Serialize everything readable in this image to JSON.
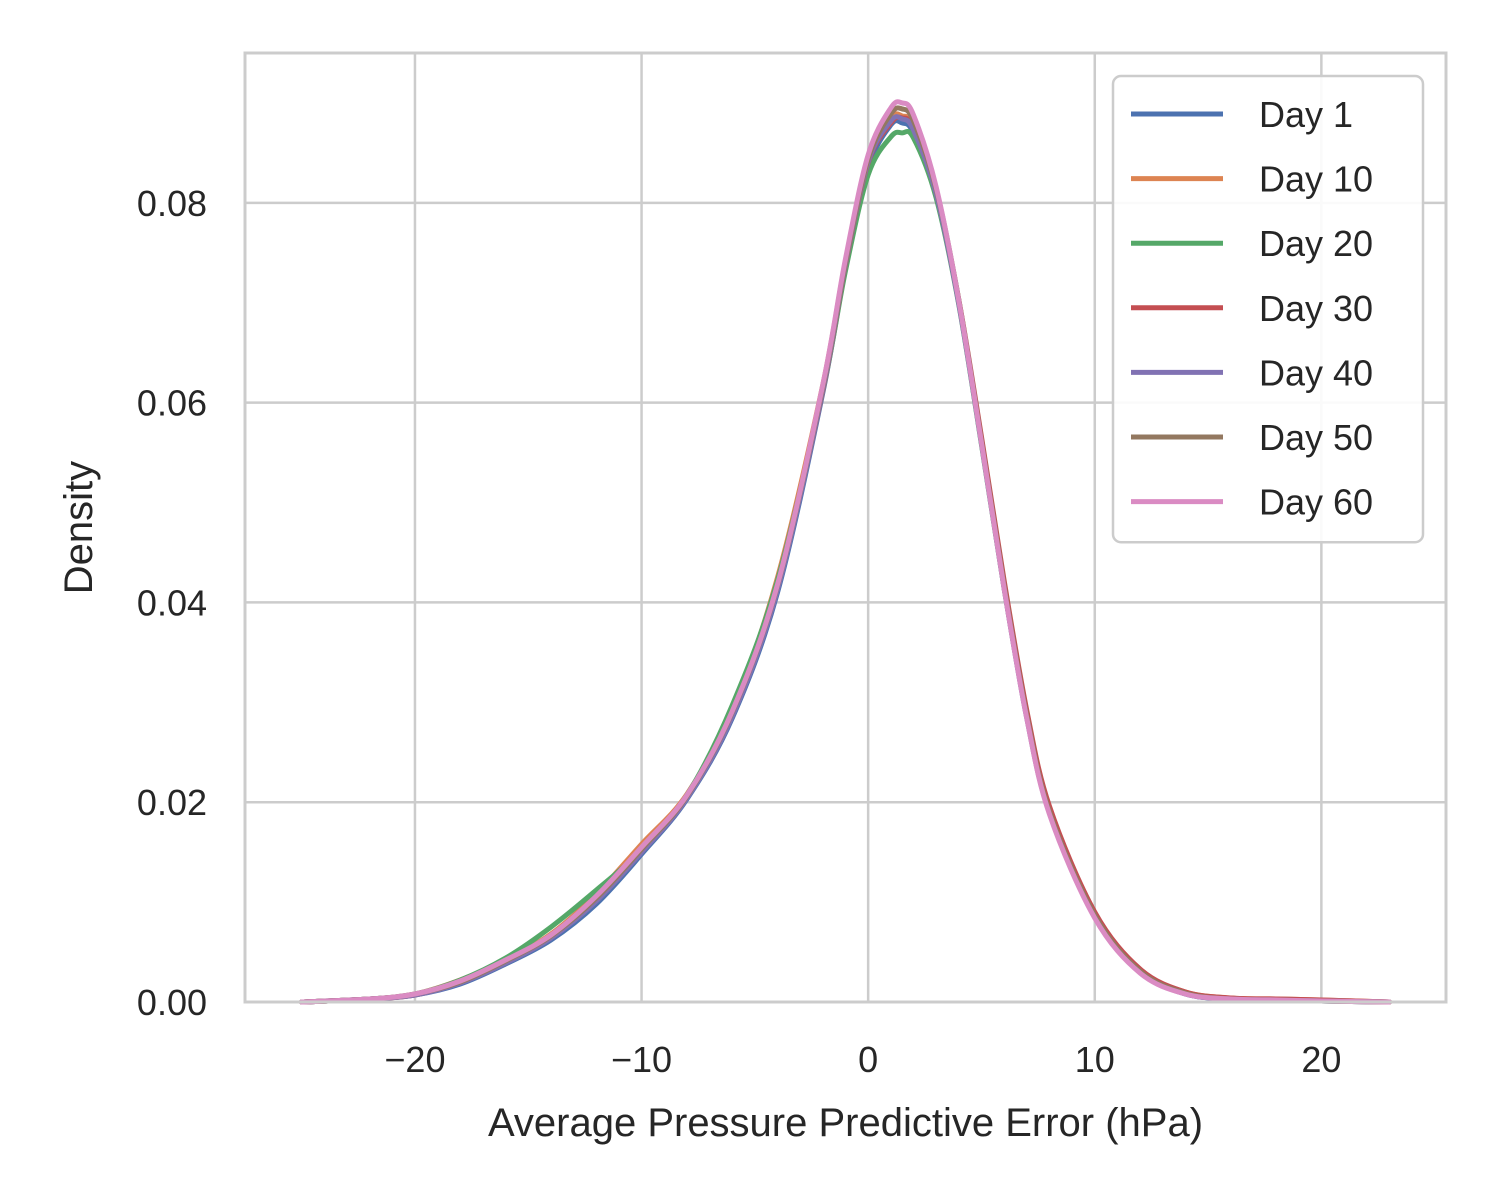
{
  "chart_data": {
    "type": "line",
    "xlabel": "Average Pressure Predictive Error (hPa)",
    "ylabel": "Density",
    "xlim": [
      -27.5,
      25.5
    ],
    "ylim": [
      0,
      0.095
    ],
    "xticks": [
      -20,
      -10,
      0,
      10,
      20
    ],
    "xtick_labels": [
      "−20",
      "−10",
      "0",
      "10",
      "20"
    ],
    "yticks": [
      0,
      0.02,
      0.04,
      0.06,
      0.08
    ],
    "ytick_labels": [
      "0.00",
      "0.02",
      "0.04",
      "0.06",
      "0.08"
    ],
    "grid": true,
    "legend_position": "top-right",
    "x": [
      -25,
      -22,
      -20,
      -18,
      -16,
      -14,
      -12,
      -10,
      -8,
      -6,
      -4,
      -2,
      -1,
      0,
      1,
      1.5,
      2,
      3,
      4,
      5,
      6,
      7,
      8,
      10,
      12,
      14,
      16,
      18,
      20,
      23
    ],
    "series": [
      {
        "name": "Day 1",
        "color": "#4c72b0",
        "values": [
          0.0,
          0.0003,
          0.0007,
          0.0018,
          0.0038,
          0.0062,
          0.0098,
          0.0148,
          0.0203,
          0.0284,
          0.041,
          0.061,
          0.0735,
          0.0835,
          0.0878,
          0.088,
          0.087,
          0.081,
          0.07,
          0.056,
          0.0415,
          0.0285,
          0.019,
          0.0085,
          0.003,
          0.0008,
          0.0003,
          0.0002,
          0.0001,
          0.0
        ]
      },
      {
        "name": "Day 10",
        "color": "#dd8452",
        "values": [
          0.0,
          0.0003,
          0.0008,
          0.0022,
          0.0042,
          0.0068,
          0.0108,
          0.0158,
          0.0208,
          0.0292,
          0.0425,
          0.0618,
          0.0742,
          0.0845,
          0.0885,
          0.0887,
          0.0877,
          0.0812,
          0.0702,
          0.0562,
          0.0418,
          0.0288,
          0.0192,
          0.0088,
          0.0032,
          0.001,
          0.0004,
          0.0003,
          0.0002,
          0.0
        ]
      },
      {
        "name": "Day 20",
        "color": "#55a868",
        "values": [
          0.0,
          0.0003,
          0.0008,
          0.0022,
          0.0044,
          0.0075,
          0.0112,
          0.0152,
          0.0207,
          0.0297,
          0.0422,
          0.0612,
          0.0732,
          0.0828,
          0.0866,
          0.087,
          0.0865,
          0.0805,
          0.0698,
          0.0558,
          0.0414,
          0.0286,
          0.0191,
          0.0086,
          0.003,
          0.0009,
          0.0003,
          0.0002,
          0.0001,
          0.0
        ]
      },
      {
        "name": "Day 30",
        "color": "#c44e52",
        "values": [
          0.0,
          0.0003,
          0.0007,
          0.002,
          0.004,
          0.0065,
          0.0102,
          0.0152,
          0.0205,
          0.0288,
          0.0415,
          0.0612,
          0.0738,
          0.084,
          0.088,
          0.0885,
          0.0875,
          0.081,
          0.0703,
          0.0566,
          0.0422,
          0.0292,
          0.0196,
          0.009,
          0.0033,
          0.001,
          0.0004,
          0.0003,
          0.0002,
          0.0
        ]
      },
      {
        "name": "Day 40",
        "color": "#8172b3",
        "values": [
          0.0,
          0.0003,
          0.0007,
          0.0019,
          0.0039,
          0.0064,
          0.0101,
          0.015,
          0.0204,
          0.0286,
          0.0413,
          0.0613,
          0.0739,
          0.0841,
          0.0882,
          0.0884,
          0.0873,
          0.0809,
          0.0699,
          0.0559,
          0.0414,
          0.0284,
          0.0189,
          0.0085,
          0.003,
          0.0008,
          0.0003,
          0.0002,
          0.0001,
          0.0
        ]
      },
      {
        "name": "Day 50",
        "color": "#937860",
        "values": [
          0.0,
          0.0003,
          0.0008,
          0.002,
          0.0041,
          0.0066,
          0.0104,
          0.0153,
          0.0206,
          0.029,
          0.0417,
          0.0616,
          0.0741,
          0.0844,
          0.0889,
          0.0894,
          0.0882,
          0.0814,
          0.0703,
          0.0562,
          0.0417,
          0.0287,
          0.0191,
          0.0087,
          0.0031,
          0.0009,
          0.0003,
          0.0002,
          0.0001,
          0.0
        ]
      },
      {
        "name": "Day 60",
        "color": "#da8bc3",
        "values": [
          0.0,
          0.0003,
          0.0008,
          0.0021,
          0.0042,
          0.0067,
          0.0106,
          0.0155,
          0.0207,
          0.0291,
          0.0418,
          0.0618,
          0.0744,
          0.0848,
          0.0895,
          0.09,
          0.0888,
          0.0816,
          0.0702,
          0.056,
          0.0414,
          0.0284,
          0.0188,
          0.0084,
          0.0029,
          0.0008,
          0.0003,
          0.0002,
          0.0001,
          0.0
        ]
      }
    ]
  }
}
